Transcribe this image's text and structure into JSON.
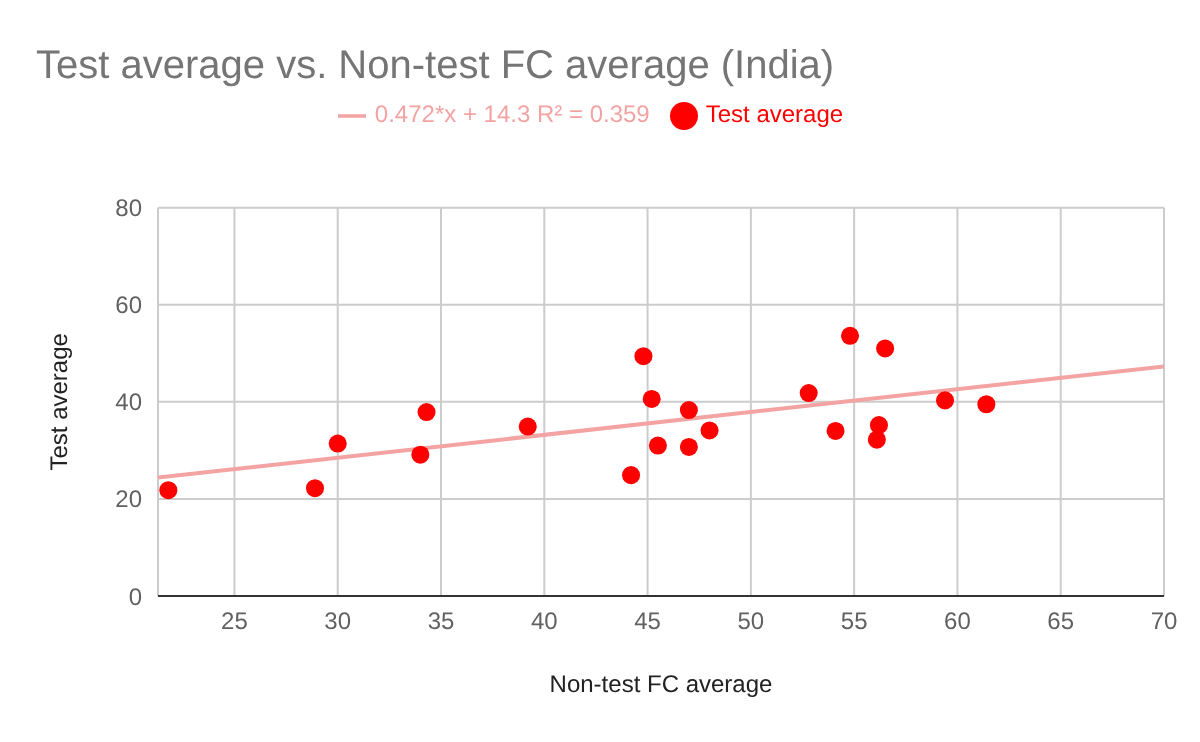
{
  "chart_data": {
    "type": "scatter",
    "title": "Test average vs. Non-test FC average (India)",
    "xlabel": "Non-test FC average",
    "ylabel": "Test average",
    "xlim": [
      21.3,
      70
    ],
    "xticks": [
      25,
      30,
      35,
      40,
      45,
      50,
      55,
      60,
      65,
      70
    ],
    "ylim": [
      0,
      80
    ],
    "yticks": [
      0,
      20,
      40,
      60,
      80
    ],
    "grid": true,
    "legend": "top",
    "marker": "circle",
    "series": [
      {
        "name": "Test average",
        "color": "#ff0000",
        "x": [
          21.8,
          28.9,
          30.0,
          34.0,
          34.3,
          39.2,
          44.2,
          44.8,
          45.2,
          45.5,
          47.0,
          47.0,
          48.0,
          52.8,
          54.1,
          54.8,
          56.2,
          56.1,
          56.5,
          59.4,
          61.4
        ],
        "values": [
          21.8,
          22.2,
          31.4,
          29.1,
          37.9,
          34.9,
          24.9,
          49.4,
          40.6,
          31.0,
          38.3,
          30.7,
          34.1,
          41.8,
          34.0,
          53.6,
          35.2,
          32.2,
          51.0,
          40.3,
          39.5
        ]
      },
      {
        "name": "0.472*x + 14.3 R² = 0.359",
        "type": "line",
        "color": "#f4a3a3",
        "marker": "none",
        "x": [
          21.3,
          70
        ],
        "values": [
          24.4,
          47.3
        ]
      }
    ]
  }
}
